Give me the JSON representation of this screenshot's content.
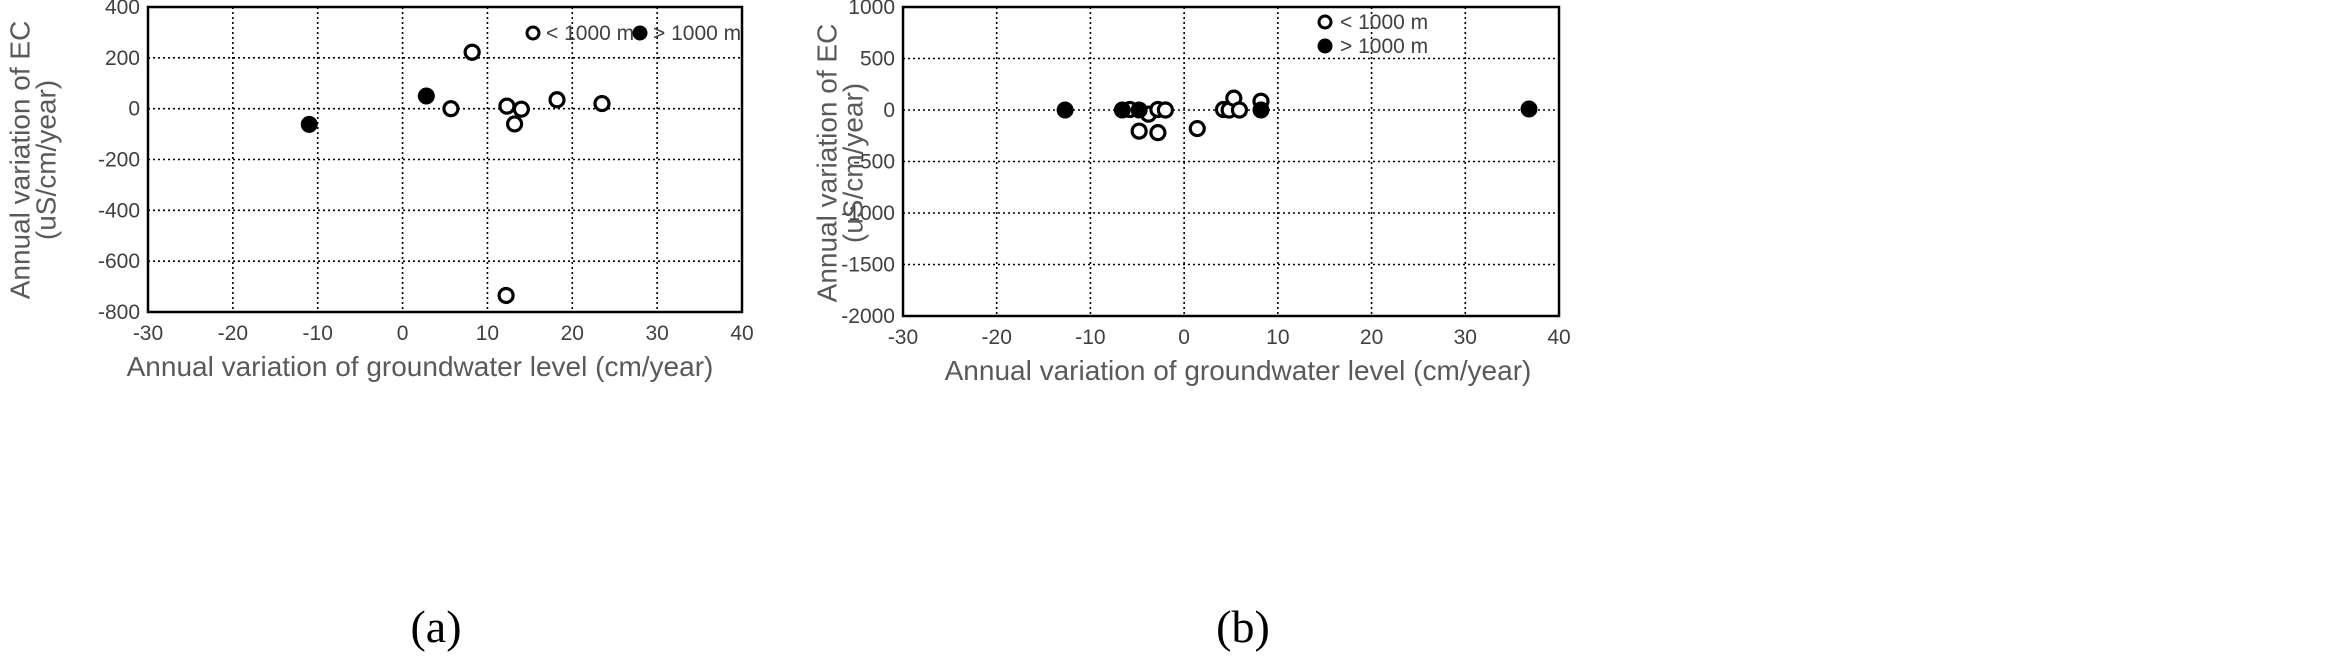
{
  "chart_data": [
    {
      "type": "scatter",
      "panel_label": "(a)",
      "xlabel": "Annual variation of groundwater level (cm/year)",
      "ylabel": [
        "Annual variation of EC",
        "(uS/cm/year)"
      ],
      "xlim": [
        -30,
        40
      ],
      "ylim": [
        -800,
        400
      ],
      "xticks": [
        -30,
        -20,
        -10,
        0,
        10,
        20,
        30,
        40
      ],
      "yticks": [
        -800,
        -600,
        -400,
        -200,
        0,
        200,
        400
      ],
      "grid": true,
      "legend_placement": "top-right",
      "legend_layout": "horizontal",
      "series": [
        {
          "name": "< 1000 m",
          "marker": "open-circle",
          "color": "#000000",
          "points": [
            [
              8.2,
              222
            ],
            [
              5.7,
              0
            ],
            [
              12.3,
              10
            ],
            [
              14.0,
              -2
            ],
            [
              13.2,
              -60
            ],
            [
              18.2,
              35
            ],
            [
              23.5,
              20
            ],
            [
              12.2,
              -735
            ]
          ]
        },
        {
          "name": "> 1000 m",
          "marker": "filled-circle",
          "color": "#000000",
          "points": [
            [
              -11.0,
              -62
            ],
            [
              2.8,
              50
            ]
          ]
        }
      ]
    },
    {
      "type": "scatter",
      "panel_label": "(b)",
      "xlabel": "Annual variation of groundwater level (cm/year)",
      "ylabel": [
        "Annual variation of EC",
        "(uS/cm/year)"
      ],
      "xlim": [
        -30,
        40
      ],
      "ylim": [
        -2000,
        1000
      ],
      "xticks": [
        -30,
        -20,
        -10,
        0,
        10,
        20,
        30,
        40
      ],
      "yticks": [
        -2000,
        -1500,
        -1000,
        -500,
        0,
        500,
        1000
      ],
      "grid": true,
      "legend_placement": "top-right",
      "legend_layout": "vertical",
      "series": [
        {
          "name": "< 1000 m",
          "marker": "open-circle",
          "color": "#000000",
          "points": [
            [
              -5.8,
              5
            ],
            [
              -3.8,
              -40
            ],
            [
              -2.8,
              5
            ],
            [
              -2.0,
              0
            ],
            [
              -4.8,
              -205
            ],
            [
              -2.8,
              -220
            ],
            [
              1.4,
              -180
            ],
            [
              4.2,
              5
            ],
            [
              4.8,
              0
            ],
            [
              5.3,
              115
            ],
            [
              5.9,
              0
            ],
            [
              8.2,
              85
            ]
          ]
        },
        {
          "name": "> 1000 m",
          "marker": "filled-circle",
          "color": "#000000",
          "points": [
            [
              -12.7,
              0
            ],
            [
              -6.6,
              0
            ],
            [
              -4.8,
              0
            ],
            [
              8.2,
              0
            ],
            [
              36.8,
              10
            ]
          ]
        }
      ]
    }
  ]
}
